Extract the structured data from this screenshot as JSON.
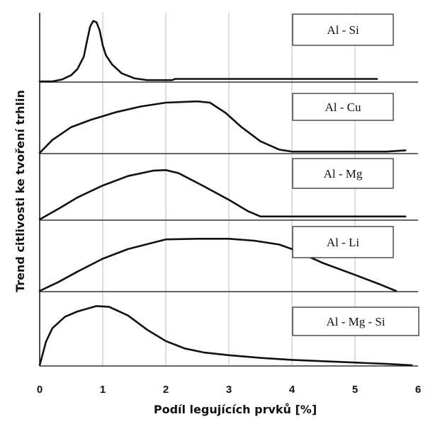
{
  "chart_data": {
    "type": "line",
    "xlabel": "Podíl legujících prvků [%]",
    "ylabel": "Trend citlivosti ke tvoření trhlin",
    "xlim": [
      0,
      6
    ],
    "ylim": [
      0,
      1
    ],
    "x_ticks": [
      "0",
      "1",
      "2",
      "3",
      "4",
      "5",
      "6"
    ],
    "grid": "vertical",
    "series": [
      {
        "name": "Al - Si",
        "points": [
          [
            0.0,
            0.0
          ],
          [
            0.2,
            0.0
          ],
          [
            0.35,
            0.03
          ],
          [
            0.5,
            0.1
          ],
          [
            0.6,
            0.2
          ],
          [
            0.7,
            0.4
          ],
          [
            0.75,
            0.65
          ],
          [
            0.8,
            0.88
          ],
          [
            0.85,
            0.97
          ],
          [
            0.9,
            0.95
          ],
          [
            0.95,
            0.82
          ],
          [
            1.0,
            0.58
          ],
          [
            1.05,
            0.42
          ],
          [
            1.15,
            0.27
          ],
          [
            1.3,
            0.13
          ],
          [
            1.5,
            0.05
          ],
          [
            1.7,
            0.02
          ],
          [
            2.0,
            0.02
          ],
          [
            2.1,
            0.02
          ],
          [
            2.15,
            0.04
          ],
          [
            5.35,
            0.04
          ]
        ]
      },
      {
        "name": "Al - Cu",
        "points": [
          [
            0.0,
            0.0
          ],
          [
            0.2,
            0.2
          ],
          [
            0.5,
            0.4
          ],
          [
            0.8,
            0.51
          ],
          [
            1.2,
            0.63
          ],
          [
            1.6,
            0.72
          ],
          [
            2.0,
            0.78
          ],
          [
            2.5,
            0.8
          ],
          [
            2.7,
            0.78
          ],
          [
            2.95,
            0.62
          ],
          [
            3.2,
            0.4
          ],
          [
            3.5,
            0.18
          ],
          [
            3.8,
            0.05
          ],
          [
            4.0,
            0.02
          ],
          [
            5.0,
            0.02
          ],
          [
            5.5,
            0.02
          ],
          [
            5.8,
            0.04
          ]
        ]
      },
      {
        "name": "Al - Mg",
        "points": [
          [
            0.0,
            0.0
          ],
          [
            0.3,
            0.18
          ],
          [
            0.6,
            0.37
          ],
          [
            1.0,
            0.57
          ],
          [
            1.4,
            0.73
          ],
          [
            1.8,
            0.82
          ],
          [
            2.0,
            0.83
          ],
          [
            2.2,
            0.78
          ],
          [
            2.6,
            0.56
          ],
          [
            3.0,
            0.33
          ],
          [
            3.3,
            0.14
          ],
          [
            3.5,
            0.05
          ],
          [
            4.0,
            0.05
          ],
          [
            5.0,
            0.05
          ],
          [
            5.8,
            0.05
          ]
        ]
      },
      {
        "name": "Al - Li",
        "points": [
          [
            0.0,
            0.0
          ],
          [
            0.3,
            0.14
          ],
          [
            0.6,
            0.3
          ],
          [
            1.0,
            0.5
          ],
          [
            1.4,
            0.65
          ],
          [
            1.8,
            0.75
          ],
          [
            2.0,
            0.8
          ],
          [
            2.5,
            0.81
          ],
          [
            3.0,
            0.81
          ],
          [
            3.4,
            0.78
          ],
          [
            3.8,
            0.72
          ],
          [
            4.0,
            0.65
          ],
          [
            4.5,
            0.43
          ],
          [
            5.0,
            0.25
          ],
          [
            5.4,
            0.1
          ],
          [
            5.65,
            0.0
          ]
        ]
      },
      {
        "name": "Al - Mg - Si",
        "points": [
          [
            0.0,
            0.0
          ],
          [
            0.1,
            0.35
          ],
          [
            0.2,
            0.55
          ],
          [
            0.4,
            0.72
          ],
          [
            0.6,
            0.8
          ],
          [
            0.9,
            0.88
          ],
          [
            1.1,
            0.87
          ],
          [
            1.4,
            0.74
          ],
          [
            1.7,
            0.53
          ],
          [
            2.0,
            0.36
          ],
          [
            2.3,
            0.25
          ],
          [
            2.6,
            0.19
          ],
          [
            3.0,
            0.15
          ],
          [
            3.5,
            0.11
          ],
          [
            4.0,
            0.08
          ],
          [
            4.5,
            0.06
          ],
          [
            5.0,
            0.04
          ],
          [
            5.5,
            0.02
          ],
          [
            5.9,
            0.0
          ]
        ]
      }
    ]
  }
}
